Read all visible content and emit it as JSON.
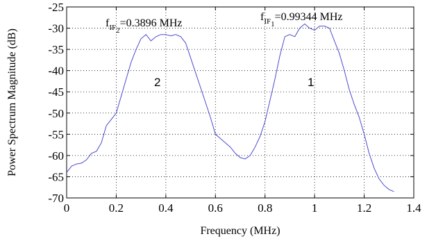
{
  "chart_data": {
    "type": "line",
    "xlabel": "Frequency (MHz)",
    "ylabel": "Power Spectrum Magnitude (dB)",
    "xlim": [
      0,
      1.4
    ],
    "ylim": [
      -70,
      -25
    ],
    "xticks": [
      "0",
      "0.2",
      "0.4",
      "0.6",
      "0.8",
      "1",
      "1.2",
      "1.4"
    ],
    "yticks": [
      "-25",
      "-30",
      "-35",
      "-40",
      "-45",
      "-50",
      "-55",
      "-60",
      "-65",
      "-70"
    ],
    "grid": "dotted",
    "line_color": "#4a4ad0",
    "series": [
      {
        "x": [
          0.0,
          0.02,
          0.04,
          0.06,
          0.08,
          0.1,
          0.12,
          0.14,
          0.16,
          0.18,
          0.2,
          0.22,
          0.24,
          0.26,
          0.28,
          0.3,
          0.32,
          0.34,
          0.36,
          0.38,
          0.4,
          0.42,
          0.44,
          0.46,
          0.48,
          0.5,
          0.52,
          0.54,
          0.56,
          0.58,
          0.6,
          0.62,
          0.64,
          0.66,
          0.68,
          0.7,
          0.72,
          0.74,
          0.76,
          0.78,
          0.8,
          0.82,
          0.84,
          0.86,
          0.88,
          0.9,
          0.92,
          0.94,
          0.96,
          0.98,
          1.0,
          1.02,
          1.04,
          1.06,
          1.08,
          1.1,
          1.12,
          1.14,
          1.16,
          1.18,
          1.2,
          1.22,
          1.24,
          1.26,
          1.28,
          1.3,
          1.32
        ],
        "values": [
          -64,
          -62.5,
          -62,
          -61.8,
          -61,
          -59.5,
          -59,
          -57,
          -53,
          -51.5,
          -50,
          -46,
          -42,
          -38,
          -35,
          -32.5,
          -31.5,
          -33,
          -32,
          -31.5,
          -31.5,
          -31.8,
          -31.5,
          -32,
          -33.5,
          -37,
          -40.5,
          -44,
          -47.5,
          -51,
          -55,
          -56,
          -57,
          -58,
          -59.5,
          -60.5,
          -60.8,
          -60,
          -58,
          -55.5,
          -52,
          -47,
          -42,
          -36.5,
          -32,
          -31.5,
          -32,
          -30,
          -29,
          -30,
          -30.5,
          -29.5,
          -29.5,
          -30,
          -33,
          -36,
          -40,
          -44.5,
          -48,
          -51,
          -55,
          -59.5,
          -63,
          -65.5,
          -67,
          -68,
          -68.5
        ]
      }
    ],
    "annotations": {
      "label_if2_main": "f",
      "label_if2_sub": "IF",
      "label_if2_subsub": "2",
      "label_if2_value": "=0.3896 MHz",
      "label_if1_main": "f",
      "label_if1_sub": "IF",
      "label_if1_subsub": "1",
      "label_if1_value": "=0.99344 MHz",
      "peak_left": "2",
      "peak_right": "1"
    }
  }
}
